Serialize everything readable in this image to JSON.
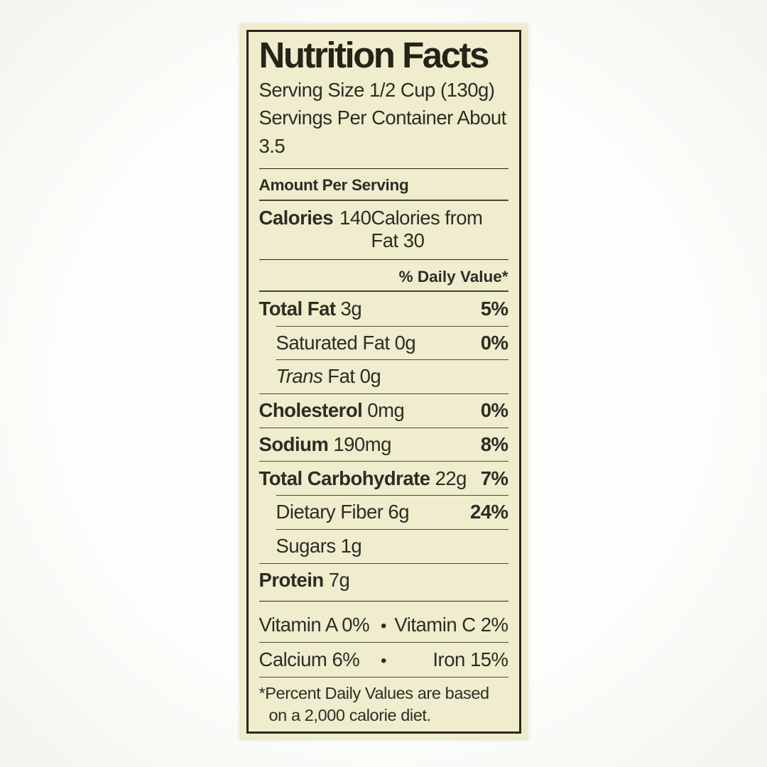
{
  "label": {
    "title": "Nutrition Facts",
    "serving_size": "Serving Size 1/2 Cup (130g)",
    "servings_per_container": "Servings Per Container About 3.5",
    "amount_per_serving": "Amount Per Serving",
    "calories_label": "Calories",
    "calories_value": "140",
    "calories_from_fat": "Calories from Fat 30",
    "daily_value_header": "% Daily Value*",
    "rows": [
      {
        "name": "Total Fat",
        "amount": "3g",
        "dv": "5%"
      },
      {
        "name": "Saturated Fat",
        "amount": "0g",
        "dv": "0%"
      },
      {
        "name": "Trans",
        "amount": "Fat 0g",
        "dv": ""
      },
      {
        "name": "Cholesterol",
        "amount": "0mg",
        "dv": "0%"
      },
      {
        "name": "Sodium",
        "amount": "190mg",
        "dv": "8%"
      },
      {
        "name": "Total Carbohydrate",
        "amount": "22g",
        "dv": "7%"
      },
      {
        "name": "Dietary Fiber",
        "amount": "6g",
        "dv": "24%"
      },
      {
        "name": "Sugars",
        "amount": "1g",
        "dv": ""
      },
      {
        "name": "Protein",
        "amount": "7g",
        "dv": ""
      }
    ],
    "vitamins": {
      "bullet": "•",
      "vitamin_a": "Vitamin A 0%",
      "vitamin_c": "Vitamin C 2%",
      "calcium": "Calcium 6%",
      "iron": "Iron 15%"
    },
    "footnote": "*Percent Daily Values are based on a 2,000 calorie diet."
  },
  "colors": {
    "label_background": "#efedcd",
    "text": "#2e2c24",
    "bar": "#211f18",
    "border": "#2b291f"
  }
}
